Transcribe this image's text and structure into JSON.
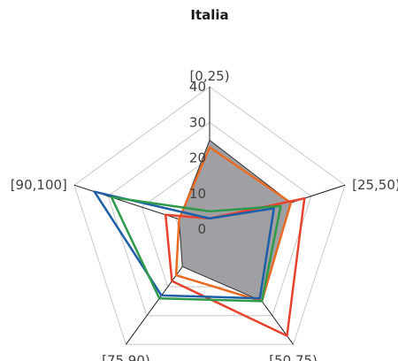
{
  "chart_data": {
    "type": "radar",
    "title": "Italia",
    "categories": [
      "[0,25)",
      "[25,50)",
      "[50,75)",
      "[75,90)",
      "[90,100]"
    ],
    "rlim": [
      0,
      40
    ],
    "ticks": [
      0,
      10,
      20,
      30,
      40
    ],
    "grid": true,
    "legend": "none",
    "series": [
      {
        "color": "#808080",
        "fill": "#a0a0a4",
        "filled": true,
        "values": [
          25,
          24,
          25,
          13,
          9
        ]
      },
      {
        "color": "#ea6a22",
        "fill": "none",
        "filled": false,
        "values": [
          23,
          24,
          25,
          16,
          9
        ]
      },
      {
        "color": "#e8422d",
        "fill": "none",
        "filled": false,
        "values": [
          3,
          28,
          37,
          18,
          13
        ]
      },
      {
        "color": "#1d5ea8",
        "fill": "none",
        "filled": false,
        "values": [
          3,
          19,
          24,
          23,
          34
        ]
      },
      {
        "color": "#2e9a49",
        "fill": "none",
        "filled": false,
        "values": [
          5,
          21,
          25,
          24,
          29
        ]
      }
    ]
  }
}
